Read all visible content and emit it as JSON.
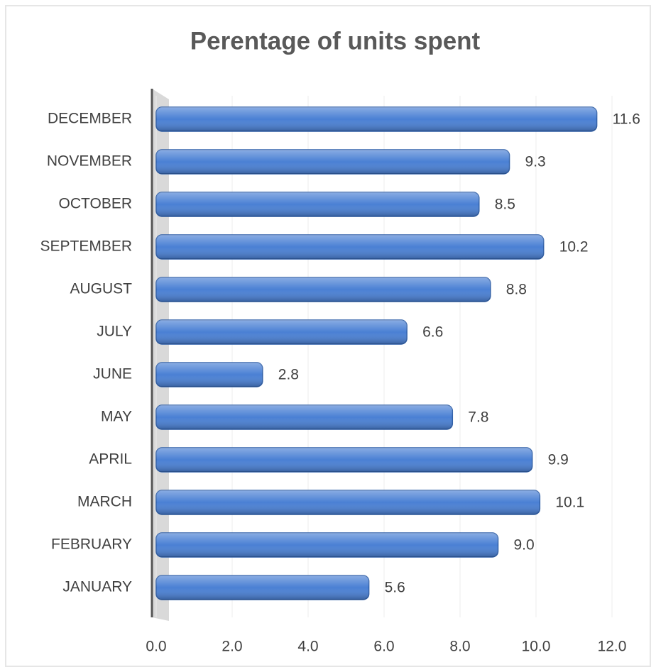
{
  "chart_data": {
    "type": "bar",
    "orientation": "horizontal",
    "title": "Perentage of units spent",
    "categories": [
      "JANUARY",
      "FEBRUARY",
      "MARCH",
      "APRIL",
      "MAY",
      "JUNE",
      "JULY",
      "AUGUST",
      "SEPTEMBER",
      "OCTOBER",
      "NOVEMBER",
      "DECEMBER"
    ],
    "values": [
      5.6,
      9.0,
      10.1,
      9.9,
      7.8,
      2.8,
      6.6,
      8.8,
      10.2,
      8.5,
      9.3,
      11.6
    ],
    "value_labels": [
      "5.6",
      "9.0",
      "10.1",
      "9.9",
      "7.8",
      "2.8",
      "6.6",
      "8.8",
      "10.2",
      "8.5",
      "9.3",
      "11.6"
    ],
    "color": "#4a80d4",
    "xlim": [
      0,
      12
    ],
    "xticks": [
      {
        "value": 0,
        "label": "0.0"
      },
      {
        "value": 2,
        "label": "2.0"
      },
      {
        "value": 4,
        "label": "4.0"
      },
      {
        "value": 6,
        "label": "6.0"
      },
      {
        "value": 8,
        "label": "8.0"
      },
      {
        "value": 10,
        "label": "10.0"
      },
      {
        "value": 12,
        "label": "12.0"
      }
    ],
    "grid": true
  }
}
